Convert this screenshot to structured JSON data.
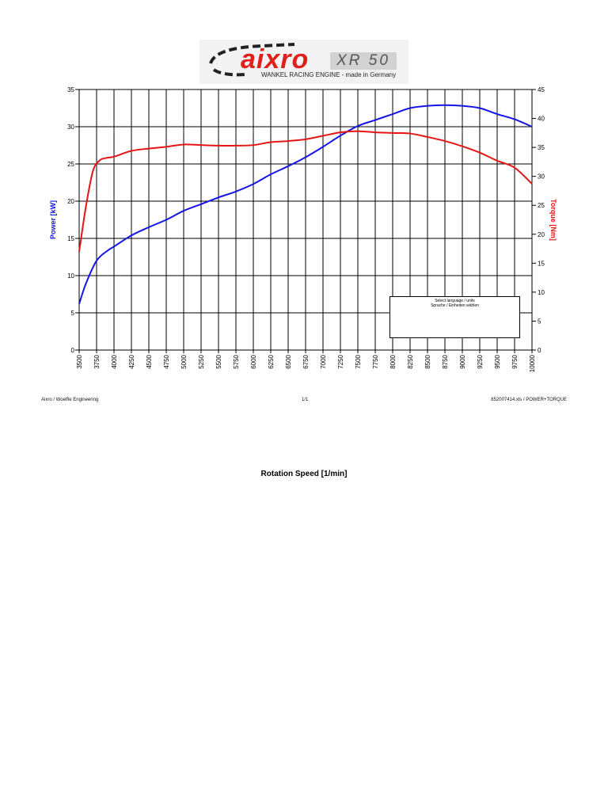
{
  "logo": {
    "brand": "aixro",
    "model": "XR 50",
    "tagline": "WANKEL RACING ENGINE - made in Germany"
  },
  "language_box": {
    "line1": "Select language / units",
    "line2": "Sprache / Einheiten wählen"
  },
  "footer": {
    "left": "Aixro / Woelfle Engineering",
    "center": "1/1",
    "right": "852007414.xls / POWER+TORQUE"
  },
  "colors": {
    "power": "#1515e6",
    "torque": "#e61515",
    "grid": "#000000"
  },
  "chart_data": {
    "type": "line",
    "xlabel": "Rotation Speed [1/min]",
    "x_ticks": [
      3500,
      3750,
      4000,
      4250,
      4500,
      4750,
      5000,
      5250,
      5500,
      5750,
      6000,
      6250,
      6500,
      6750,
      7000,
      7250,
      7500,
      7750,
      8000,
      8250,
      8500,
      8750,
      9000,
      9250,
      9500,
      9750,
      10000
    ],
    "xlim": [
      3500,
      10000
    ],
    "grid": true,
    "y_left": {
      "label": "Power [kW]",
      "lim": [
        0,
        35
      ],
      "ticks": [
        0,
        5,
        10,
        15,
        20,
        25,
        30,
        35
      ]
    },
    "y_right": {
      "label": "Torque [Nm]",
      "lim": [
        0,
        45
      ],
      "ticks": [
        0,
        5,
        10,
        15,
        20,
        25,
        30,
        35,
        40,
        45
      ]
    },
    "series": [
      {
        "name": "Power [kW]",
        "axis": "left",
        "x": [
          3500,
          3600,
          3750,
          3900,
          4000,
          4250,
          4500,
          4750,
          5000,
          5250,
          5500,
          5750,
          6000,
          6250,
          6500,
          6750,
          7000,
          7250,
          7500,
          7750,
          8000,
          8250,
          8500,
          8750,
          9000,
          9250,
          9500,
          9750,
          10000
        ],
        "values": [
          6.2,
          9.0,
          12.0,
          13.3,
          13.9,
          15.4,
          16.5,
          17.5,
          18.7,
          19.6,
          20.5,
          21.3,
          22.3,
          23.6,
          24.7,
          25.9,
          27.3,
          28.8,
          30.1,
          30.9,
          31.7,
          32.5,
          32.8,
          32.9,
          32.8,
          32.5,
          31.7,
          31.0,
          30.0
        ]
      },
      {
        "name": "Torque [Nm]",
        "axis": "right",
        "x": [
          3500,
          3600,
          3700,
          3800,
          3900,
          4000,
          4250,
          4500,
          4750,
          5000,
          5250,
          5500,
          5750,
          6000,
          6250,
          6500,
          6750,
          7000,
          7250,
          7500,
          7750,
          8000,
          8250,
          8500,
          8750,
          9000,
          9250,
          9500,
          9750,
          10000
        ],
        "values": [
          17.0,
          25.0,
          31.0,
          32.8,
          33.2,
          33.4,
          34.4,
          34.8,
          35.1,
          35.5,
          35.4,
          35.3,
          35.3,
          35.4,
          35.9,
          36.1,
          36.4,
          37.0,
          37.6,
          37.8,
          37.6,
          37.5,
          37.4,
          36.8,
          36.1,
          35.2,
          34.1,
          32.7,
          31.5,
          28.7
        ]
      }
    ]
  }
}
